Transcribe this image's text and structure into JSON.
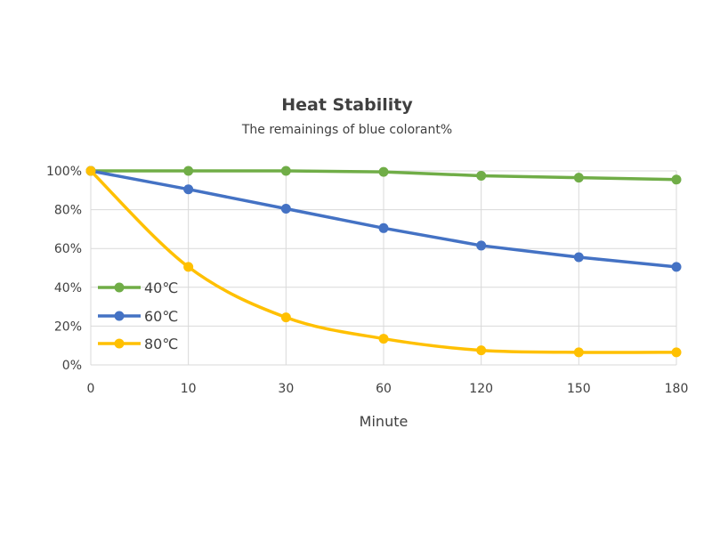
{
  "chart_data": {
    "type": "line",
    "title": "Heat Stability",
    "subtitle": "The remainings of blue colorant%",
    "xlabel": "Minute",
    "ylabel": "",
    "categories": [
      "0",
      "10",
      "30",
      "60",
      "120",
      "150",
      "180"
    ],
    "y_ticks": [
      "0%",
      "20%",
      "40%",
      "60%",
      "80%",
      "100%"
    ],
    "ylim": [
      0,
      100
    ],
    "grid": true,
    "legend_position": "left",
    "series": [
      {
        "name": "40℃",
        "color": "#70ad47",
        "values": [
          100,
          100,
          100,
          99.5,
          97.5,
          96.5,
          95.5
        ],
        "smooth": false
      },
      {
        "name": "60℃",
        "color": "#4472c4",
        "values": [
          100,
          90.5,
          80.5,
          70.5,
          61.5,
          55.5,
          50.5
        ],
        "smooth": false
      },
      {
        "name": "80℃",
        "color": "#ffc000",
        "values": [
          100,
          50.5,
          24.5,
          13.5,
          7.5,
          6.5,
          6.5
        ],
        "smooth": true
      }
    ]
  }
}
